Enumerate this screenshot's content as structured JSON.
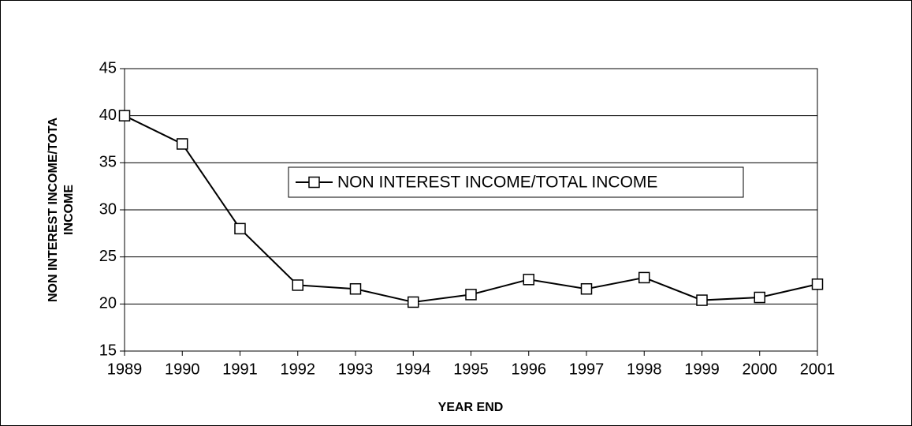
{
  "chart_data": {
    "type": "line",
    "x_label": "YEAR END",
    "y_label": [
      "NON INTEREST INCOME/TOTA",
      "INCOME"
    ],
    "categories": [
      "1989",
      "1990",
      "1991",
      "1992",
      "1993",
      "1994",
      "1995",
      "1996",
      "1997",
      "1998",
      "1999",
      "2000",
      "2001"
    ],
    "series": [
      {
        "name": "NON INTEREST INCOME/TOTAL INCOME",
        "color": "#000000",
        "values": [
          40,
          37,
          28,
          22,
          21.6,
          20.2,
          21,
          22.6,
          21.6,
          22.8,
          20.4,
          20.7,
          22.1
        ]
      }
    ],
    "ylim": [
      15,
      45
    ],
    "yticks": [
      15,
      20,
      25,
      30,
      35,
      40,
      45
    ],
    "grid": true
  }
}
